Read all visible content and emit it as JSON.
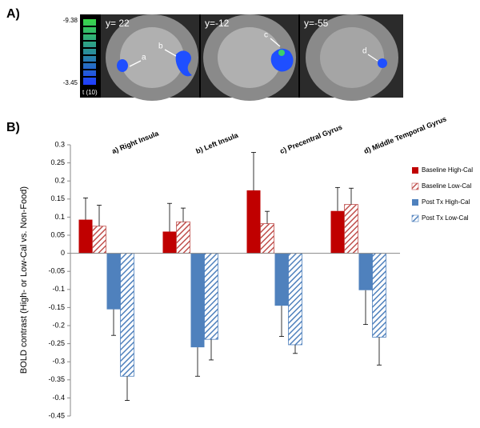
{
  "panel_a": {
    "label": "A)",
    "colorbar_max": "-9.38",
    "colorbar_min": "-3.45",
    "colorbar_title": "t (10)",
    "slices": [
      "y= 22",
      "y=-12",
      "y=-55"
    ],
    "regions": [
      "a",
      "b",
      "c",
      "d"
    ]
  },
  "chart_data": {
    "type": "bar",
    "panel_label": "B)",
    "y_label": "BOLD contrast (High- or Low-Cal vs. Non-Food)",
    "categories": [
      "a) Right Insula",
      "b) Left Insula",
      "c) Precentral Gyrus",
      "d) Middle  Temporal Gyrus"
    ],
    "series": [
      {
        "name": "Baseline High-Cal",
        "color": "#c00000",
        "pattern": "solid",
        "values": [
          0.093,
          0.06,
          0.174,
          0.117
        ],
        "errors": [
          0.06,
          0.078,
          0.105,
          0.065
        ]
      },
      {
        "name": "Baseline Low-Cal",
        "color": "#c0504d",
        "pattern": "hatch",
        "values": [
          0.075,
          0.087,
          0.082,
          0.135
        ],
        "errors": [
          0.058,
          0.038,
          0.034,
          0.045
        ]
      },
      {
        "name": "Post Tx High-Cal",
        "color": "#4f81bd",
        "pattern": "solid",
        "values": [
          -0.155,
          -0.26,
          -0.145,
          -0.102
        ],
        "errors": [
          0.072,
          0.08,
          0.085,
          0.095
        ]
      },
      {
        "name": "Post Tx Low-Cal",
        "color": "#4f81bd",
        "pattern": "hatch",
        "values": [
          -0.34,
          -0.238,
          -0.253,
          -0.232
        ],
        "errors": [
          0.067,
          0.057,
          0.024,
          0.077
        ]
      }
    ],
    "ylim": [
      -0.45,
      0.3
    ],
    "yticks": [
      -0.45,
      -0.4,
      -0.35,
      -0.3,
      -0.25,
      -0.2,
      -0.15,
      -0.1,
      -0.05,
      0,
      0.05,
      0.1,
      0.15,
      0.2,
      0.25,
      0.3
    ],
    "legend": "right"
  }
}
